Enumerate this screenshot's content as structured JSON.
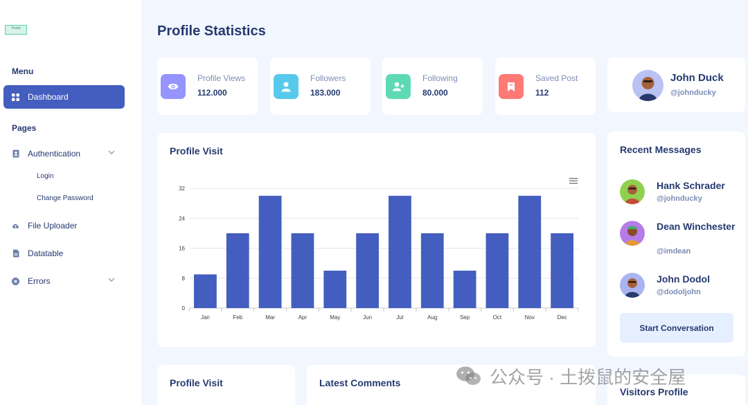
{
  "logo": {
    "text": "Portal"
  },
  "sidebar": {
    "menu_title": "Menu",
    "pages_title": "Pages",
    "items": [
      {
        "label": "Dashboard",
        "icon": "grid-icon"
      },
      {
        "label": "Authentication",
        "icon": "contact-book-icon"
      },
      {
        "label": "File Uploader",
        "icon": "cloud-upload-icon"
      },
      {
        "label": "Datatable",
        "icon": "document-icon"
      },
      {
        "label": "Errors",
        "icon": "x-circle-icon"
      }
    ],
    "sub_items": [
      {
        "label": "Login"
      },
      {
        "label": "Change Password"
      }
    ]
  },
  "page": {
    "title": "Profile Statistics"
  },
  "stats": [
    {
      "label": "Profile Views",
      "value": "112.000",
      "color": "#9694ff",
      "icon": "eye-icon"
    },
    {
      "label": "Followers",
      "value": "183.000",
      "color": "#57caeb",
      "icon": "user-icon"
    },
    {
      "label": "Following",
      "value": "80.000",
      "color": "#5ddab4",
      "icon": "user-plus-icon"
    },
    {
      "label": "Saved Post",
      "value": "112",
      "color": "#ff7976",
      "icon": "bookmark-icon"
    }
  ],
  "profile": {
    "name": "John Duck",
    "handle": "@johnducky"
  },
  "profile_visit": {
    "title": "Profile Visit",
    "menu_icon": "hamburger-icon"
  },
  "chart_data": {
    "type": "bar",
    "categories": [
      "Jan",
      "Feb",
      "Mar",
      "Apr",
      "May",
      "Jun",
      "Jul",
      "Aug",
      "Sep",
      "Oct",
      "Nov",
      "Dec"
    ],
    "values": [
      9,
      20,
      30,
      20,
      10,
      20,
      30,
      20,
      10,
      20,
      30,
      20
    ],
    "yticks": [
      "0",
      "8",
      "16",
      "24",
      "32"
    ],
    "ylim": [
      0,
      32
    ],
    "color": "#435ebe",
    "title": "",
    "xlabel": "",
    "ylabel": ""
  },
  "recent_messages": {
    "title": "Recent Messages",
    "items": [
      {
        "name": "Hank Schrader",
        "handle": "@johnducky",
        "color": "#8fd14f"
      },
      {
        "name": "Dean Winchester",
        "handle": "@imdean",
        "color": "#b57ce8"
      },
      {
        "name": "John Dodol",
        "handle": "@dodoljohn",
        "color": "#a9b4f0"
      }
    ],
    "button": "Start Conversation"
  },
  "bottom": {
    "profile_visit": "Profile Visit",
    "latest_comments": "Latest Comments",
    "visitors_profile": "Visitors Profile"
  },
  "watermark": {
    "text": "公众号 · 土拨鼠的安全屋"
  }
}
